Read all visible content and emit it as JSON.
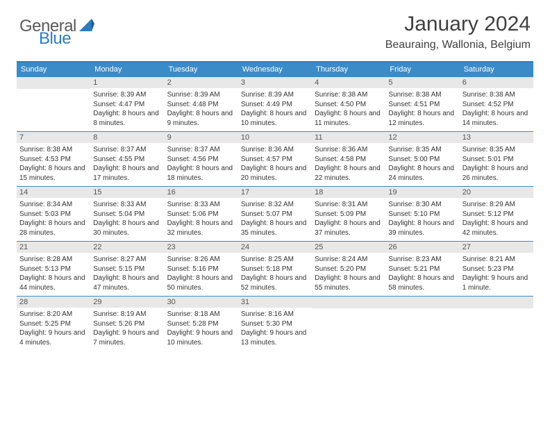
{
  "brand": {
    "text1": "General",
    "text2": "Blue"
  },
  "title": "January 2024",
  "location": "Beauraing, Wallonia, Belgium",
  "colors": {
    "header_bar": "#3b8bc9",
    "border_top": "#2d7cc0",
    "daynum_bg": "#e8e8e8",
    "text": "#333333",
    "logo_gray": "#5a5a5a",
    "logo_blue": "#2d7cc0"
  },
  "weekdays": [
    "Sunday",
    "Monday",
    "Tuesday",
    "Wednesday",
    "Thursday",
    "Friday",
    "Saturday"
  ],
  "weeks": [
    [
      {
        "n": "",
        "sr": "",
        "ss": "",
        "dl": ""
      },
      {
        "n": "1",
        "sr": "Sunrise: 8:39 AM",
        "ss": "Sunset: 4:47 PM",
        "dl": "Daylight: 8 hours and 8 minutes."
      },
      {
        "n": "2",
        "sr": "Sunrise: 8:39 AM",
        "ss": "Sunset: 4:48 PM",
        "dl": "Daylight: 8 hours and 9 minutes."
      },
      {
        "n": "3",
        "sr": "Sunrise: 8:39 AM",
        "ss": "Sunset: 4:49 PM",
        "dl": "Daylight: 8 hours and 10 minutes."
      },
      {
        "n": "4",
        "sr": "Sunrise: 8:38 AM",
        "ss": "Sunset: 4:50 PM",
        "dl": "Daylight: 8 hours and 11 minutes."
      },
      {
        "n": "5",
        "sr": "Sunrise: 8:38 AM",
        "ss": "Sunset: 4:51 PM",
        "dl": "Daylight: 8 hours and 12 minutes."
      },
      {
        "n": "6",
        "sr": "Sunrise: 8:38 AM",
        "ss": "Sunset: 4:52 PM",
        "dl": "Daylight: 8 hours and 14 minutes."
      }
    ],
    [
      {
        "n": "7",
        "sr": "Sunrise: 8:38 AM",
        "ss": "Sunset: 4:53 PM",
        "dl": "Daylight: 8 hours and 15 minutes."
      },
      {
        "n": "8",
        "sr": "Sunrise: 8:37 AM",
        "ss": "Sunset: 4:55 PM",
        "dl": "Daylight: 8 hours and 17 minutes."
      },
      {
        "n": "9",
        "sr": "Sunrise: 8:37 AM",
        "ss": "Sunset: 4:56 PM",
        "dl": "Daylight: 8 hours and 18 minutes."
      },
      {
        "n": "10",
        "sr": "Sunrise: 8:36 AM",
        "ss": "Sunset: 4:57 PM",
        "dl": "Daylight: 8 hours and 20 minutes."
      },
      {
        "n": "11",
        "sr": "Sunrise: 8:36 AM",
        "ss": "Sunset: 4:58 PM",
        "dl": "Daylight: 8 hours and 22 minutes."
      },
      {
        "n": "12",
        "sr": "Sunrise: 8:35 AM",
        "ss": "Sunset: 5:00 PM",
        "dl": "Daylight: 8 hours and 24 minutes."
      },
      {
        "n": "13",
        "sr": "Sunrise: 8:35 AM",
        "ss": "Sunset: 5:01 PM",
        "dl": "Daylight: 8 hours and 26 minutes."
      }
    ],
    [
      {
        "n": "14",
        "sr": "Sunrise: 8:34 AM",
        "ss": "Sunset: 5:03 PM",
        "dl": "Daylight: 8 hours and 28 minutes."
      },
      {
        "n": "15",
        "sr": "Sunrise: 8:33 AM",
        "ss": "Sunset: 5:04 PM",
        "dl": "Daylight: 8 hours and 30 minutes."
      },
      {
        "n": "16",
        "sr": "Sunrise: 8:33 AM",
        "ss": "Sunset: 5:06 PM",
        "dl": "Daylight: 8 hours and 32 minutes."
      },
      {
        "n": "17",
        "sr": "Sunrise: 8:32 AM",
        "ss": "Sunset: 5:07 PM",
        "dl": "Daylight: 8 hours and 35 minutes."
      },
      {
        "n": "18",
        "sr": "Sunrise: 8:31 AM",
        "ss": "Sunset: 5:09 PM",
        "dl": "Daylight: 8 hours and 37 minutes."
      },
      {
        "n": "19",
        "sr": "Sunrise: 8:30 AM",
        "ss": "Sunset: 5:10 PM",
        "dl": "Daylight: 8 hours and 39 minutes."
      },
      {
        "n": "20",
        "sr": "Sunrise: 8:29 AM",
        "ss": "Sunset: 5:12 PM",
        "dl": "Daylight: 8 hours and 42 minutes."
      }
    ],
    [
      {
        "n": "21",
        "sr": "Sunrise: 8:28 AM",
        "ss": "Sunset: 5:13 PM",
        "dl": "Daylight: 8 hours and 44 minutes."
      },
      {
        "n": "22",
        "sr": "Sunrise: 8:27 AM",
        "ss": "Sunset: 5:15 PM",
        "dl": "Daylight: 8 hours and 47 minutes."
      },
      {
        "n": "23",
        "sr": "Sunrise: 8:26 AM",
        "ss": "Sunset: 5:16 PM",
        "dl": "Daylight: 8 hours and 50 minutes."
      },
      {
        "n": "24",
        "sr": "Sunrise: 8:25 AM",
        "ss": "Sunset: 5:18 PM",
        "dl": "Daylight: 8 hours and 52 minutes."
      },
      {
        "n": "25",
        "sr": "Sunrise: 8:24 AM",
        "ss": "Sunset: 5:20 PM",
        "dl": "Daylight: 8 hours and 55 minutes."
      },
      {
        "n": "26",
        "sr": "Sunrise: 8:23 AM",
        "ss": "Sunset: 5:21 PM",
        "dl": "Daylight: 8 hours and 58 minutes."
      },
      {
        "n": "27",
        "sr": "Sunrise: 8:21 AM",
        "ss": "Sunset: 5:23 PM",
        "dl": "Daylight: 9 hours and 1 minute."
      }
    ],
    [
      {
        "n": "28",
        "sr": "Sunrise: 8:20 AM",
        "ss": "Sunset: 5:25 PM",
        "dl": "Daylight: 9 hours and 4 minutes."
      },
      {
        "n": "29",
        "sr": "Sunrise: 8:19 AM",
        "ss": "Sunset: 5:26 PM",
        "dl": "Daylight: 9 hours and 7 minutes."
      },
      {
        "n": "30",
        "sr": "Sunrise: 8:18 AM",
        "ss": "Sunset: 5:28 PM",
        "dl": "Daylight: 9 hours and 10 minutes."
      },
      {
        "n": "31",
        "sr": "Sunrise: 8:16 AM",
        "ss": "Sunset: 5:30 PM",
        "dl": "Daylight: 9 hours and 13 minutes."
      },
      {
        "n": "",
        "sr": "",
        "ss": "",
        "dl": ""
      },
      {
        "n": "",
        "sr": "",
        "ss": "",
        "dl": ""
      },
      {
        "n": "",
        "sr": "",
        "ss": "",
        "dl": ""
      }
    ]
  ]
}
